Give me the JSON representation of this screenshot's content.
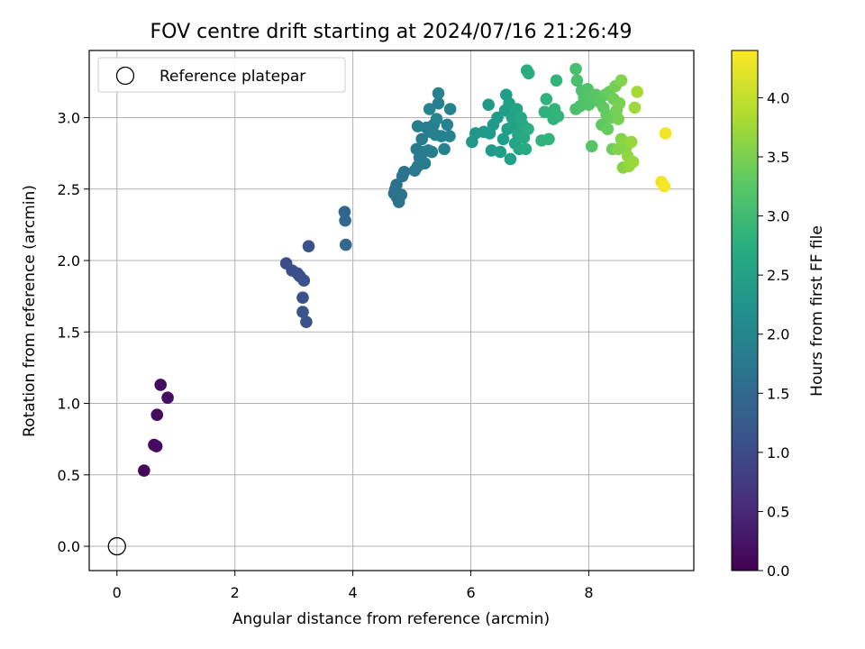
{
  "chart_data": {
    "type": "scatter",
    "title": "FOV centre drift starting at 2024/07/16 21:26:49",
    "xlabel": "Angular distance from reference (arcmin)",
    "ylabel": "Rotation from reference (arcmin)",
    "xlim": [
      -0.47,
      9.78
    ],
    "ylim": [
      -0.17,
      3.47
    ],
    "xticks": [
      "0",
      "2",
      "4",
      "6",
      "8"
    ],
    "xtick_values": [
      0,
      2,
      4,
      6,
      8
    ],
    "yticks": [
      "0.0",
      "0.5",
      "1.0",
      "1.5",
      "2.0",
      "2.5",
      "3.0"
    ],
    "ytick_values": [
      0,
      0.5,
      1.0,
      1.5,
      2.0,
      2.5,
      3.0
    ],
    "grid": true,
    "colormap": "viridis",
    "colorbar": {
      "label": "Hours from first FF file",
      "range": [
        0,
        4.4
      ],
      "ticks": [
        "0.0",
        "0.5",
        "1.0",
        "1.5",
        "2.0",
        "2.5",
        "3.0",
        "3.5",
        "4.0"
      ],
      "tick_values": [
        0,
        0.5,
        1.0,
        1.5,
        2.0,
        2.5,
        3.0,
        3.5,
        4.0
      ]
    },
    "legend": {
      "placement": "top-left",
      "entries": [
        "Reference platepar"
      ]
    },
    "reference_point": {
      "x": 0,
      "y": 0
    },
    "points": [
      {
        "x": 0.46,
        "y": 0.53,
        "t": 0.1
      },
      {
        "x": 0.63,
        "y": 0.71,
        "t": 0.12
      },
      {
        "x": 0.67,
        "y": 0.7,
        "t": 0.13
      },
      {
        "x": 0.68,
        "y": 0.92,
        "t": 0.14
      },
      {
        "x": 0.74,
        "y": 1.13,
        "t": 0.15
      },
      {
        "x": 0.86,
        "y": 1.04,
        "t": 0.16
      },
      {
        "x": 2.87,
        "y": 1.98,
        "t": 1.05
      },
      {
        "x": 2.97,
        "y": 1.93,
        "t": 1.07
      },
      {
        "x": 3.06,
        "y": 1.91,
        "t": 1.08
      },
      {
        "x": 3.1,
        "y": 1.89,
        "t": 1.09
      },
      {
        "x": 3.17,
        "y": 1.86,
        "t": 1.1
      },
      {
        "x": 3.15,
        "y": 1.74,
        "t": 1.12
      },
      {
        "x": 3.15,
        "y": 1.64,
        "t": 1.13
      },
      {
        "x": 3.21,
        "y": 1.57,
        "t": 1.14
      },
      {
        "x": 3.25,
        "y": 2.1,
        "t": 1.15
      },
      {
        "x": 3.86,
        "y": 2.34,
        "t": 1.45
      },
      {
        "x": 3.87,
        "y": 2.28,
        "t": 1.46
      },
      {
        "x": 3.88,
        "y": 2.11,
        "t": 1.47
      },
      {
        "x": 4.7,
        "y": 2.47,
        "t": 1.62
      },
      {
        "x": 4.72,
        "y": 2.5,
        "t": 1.63
      },
      {
        "x": 4.74,
        "y": 2.53,
        "t": 1.64
      },
      {
        "x": 4.78,
        "y": 2.41,
        "t": 1.65
      },
      {
        "x": 4.82,
        "y": 2.46,
        "t": 1.66
      },
      {
        "x": 4.84,
        "y": 2.59,
        "t": 1.67
      },
      {
        "x": 4.87,
        "y": 2.62,
        "t": 1.68
      },
      {
        "x": 4.8,
        "y": 2.45,
        "t": 1.69
      },
      {
        "x": 4.75,
        "y": 2.44,
        "t": 1.7
      },
      {
        "x": 5.05,
        "y": 2.63,
        "t": 1.78
      },
      {
        "x": 5.1,
        "y": 2.66,
        "t": 1.79
      },
      {
        "x": 5.08,
        "y": 2.78,
        "t": 1.8
      },
      {
        "x": 5.13,
        "y": 2.72,
        "t": 1.81
      },
      {
        "x": 5.17,
        "y": 2.85,
        "t": 1.82
      },
      {
        "x": 5.2,
        "y": 2.76,
        "t": 1.83
      },
      {
        "x": 5.22,
        "y": 2.68,
        "t": 1.84
      },
      {
        "x": 5.25,
        "y": 2.93,
        "t": 1.85
      },
      {
        "x": 5.28,
        "y": 2.77,
        "t": 1.86
      },
      {
        "x": 5.31,
        "y": 2.9,
        "t": 1.87
      },
      {
        "x": 5.34,
        "y": 2.76,
        "t": 1.88
      },
      {
        "x": 5.37,
        "y": 2.95,
        "t": 1.89
      },
      {
        "x": 5.1,
        "y": 2.94,
        "t": 1.9
      },
      {
        "x": 5.4,
        "y": 2.88,
        "t": 1.91
      },
      {
        "x": 5.45,
        "y": 3.1,
        "t": 1.92
      },
      {
        "x": 5.45,
        "y": 3.17,
        "t": 1.93
      },
      {
        "x": 5.5,
        "y": 2.87,
        "t": 1.94
      },
      {
        "x": 5.55,
        "y": 2.78,
        "t": 1.95
      },
      {
        "x": 5.6,
        "y": 2.95,
        "t": 1.96
      },
      {
        "x": 5.64,
        "y": 2.87,
        "t": 1.97
      },
      {
        "x": 5.65,
        "y": 3.06,
        "t": 1.98
      },
      {
        "x": 5.3,
        "y": 3.06,
        "t": 1.99
      },
      {
        "x": 5.42,
        "y": 2.99,
        "t": 2.0
      },
      {
        "x": 6.02,
        "y": 2.83,
        "t": 2.3
      },
      {
        "x": 6.08,
        "y": 2.89,
        "t": 2.32
      },
      {
        "x": 6.22,
        "y": 2.9,
        "t": 2.34
      },
      {
        "x": 6.3,
        "y": 3.09,
        "t": 2.36
      },
      {
        "x": 6.32,
        "y": 2.89,
        "t": 2.37
      },
      {
        "x": 6.35,
        "y": 2.77,
        "t": 2.38
      },
      {
        "x": 6.38,
        "y": 2.95,
        "t": 2.39
      },
      {
        "x": 6.45,
        "y": 3.0,
        "t": 2.4
      },
      {
        "x": 6.5,
        "y": 2.76,
        "t": 2.42
      },
      {
        "x": 6.55,
        "y": 2.85,
        "t": 2.44
      },
      {
        "x": 6.58,
        "y": 3.05,
        "t": 2.46
      },
      {
        "x": 6.6,
        "y": 3.16,
        "t": 2.47
      },
      {
        "x": 6.62,
        "y": 2.92,
        "t": 2.48
      },
      {
        "x": 6.65,
        "y": 3.1,
        "t": 2.49
      },
      {
        "x": 6.67,
        "y": 2.71,
        "t": 2.5
      },
      {
        "x": 6.7,
        "y": 3.0,
        "t": 2.52
      },
      {
        "x": 6.72,
        "y": 2.95,
        "t": 2.53
      },
      {
        "x": 6.75,
        "y": 2.82,
        "t": 2.55
      },
      {
        "x": 6.78,
        "y": 3.06,
        "t": 2.57
      },
      {
        "x": 6.8,
        "y": 2.88,
        "t": 2.58
      },
      {
        "x": 6.82,
        "y": 2.78,
        "t": 2.6
      },
      {
        "x": 6.85,
        "y": 3.0,
        "t": 2.62
      },
      {
        "x": 6.88,
        "y": 2.95,
        "t": 2.64
      },
      {
        "x": 6.9,
        "y": 2.86,
        "t": 2.66
      },
      {
        "x": 6.93,
        "y": 2.78,
        "t": 2.68
      },
      {
        "x": 6.95,
        "y": 3.33,
        "t": 2.7
      },
      {
        "x": 6.98,
        "y": 3.31,
        "t": 2.72
      },
      {
        "x": 6.97,
        "y": 2.92,
        "t": 2.73
      },
      {
        "x": 7.2,
        "y": 2.84,
        "t": 2.8
      },
      {
        "x": 7.25,
        "y": 3.04,
        "t": 2.82
      },
      {
        "x": 7.28,
        "y": 3.13,
        "t": 2.83
      },
      {
        "x": 7.32,
        "y": 2.85,
        "t": 2.84
      },
      {
        "x": 7.4,
        "y": 2.99,
        "t": 2.86
      },
      {
        "x": 7.42,
        "y": 3.06,
        "t": 2.87
      },
      {
        "x": 7.45,
        "y": 3.26,
        "t": 2.88
      },
      {
        "x": 7.48,
        "y": 3.01,
        "t": 2.89
      },
      {
        "x": 7.78,
        "y": 3.34,
        "t": 3.1
      },
      {
        "x": 7.78,
        "y": 3.06,
        "t": 3.11
      },
      {
        "x": 7.8,
        "y": 3.26,
        "t": 3.12
      },
      {
        "x": 7.85,
        "y": 3.08,
        "t": 3.13
      },
      {
        "x": 7.88,
        "y": 3.19,
        "t": 3.14
      },
      {
        "x": 7.92,
        "y": 3.14,
        "t": 3.15
      },
      {
        "x": 7.95,
        "y": 3.11,
        "t": 3.16
      },
      {
        "x": 7.98,
        "y": 3.2,
        "t": 3.17
      },
      {
        "x": 8.0,
        "y": 3.09,
        "t": 3.18
      },
      {
        "x": 8.02,
        "y": 3.17,
        "t": 3.19
      },
      {
        "x": 8.05,
        "y": 2.8,
        "t": 3.2
      },
      {
        "x": 8.08,
        "y": 3.15,
        "t": 3.22
      },
      {
        "x": 8.12,
        "y": 3.16,
        "t": 3.24
      },
      {
        "x": 8.18,
        "y": 3.11,
        "t": 3.26
      },
      {
        "x": 8.22,
        "y": 2.95,
        "t": 3.28
      },
      {
        "x": 8.25,
        "y": 3.07,
        "t": 3.3
      },
      {
        "x": 8.28,
        "y": 3.16,
        "t": 3.32
      },
      {
        "x": 8.3,
        "y": 3.02,
        "t": 3.33
      },
      {
        "x": 8.32,
        "y": 2.92,
        "t": 3.35
      },
      {
        "x": 8.35,
        "y": 3.18,
        "t": 3.37
      },
      {
        "x": 8.38,
        "y": 3.0,
        "t": 3.38
      },
      {
        "x": 8.4,
        "y": 2.78,
        "t": 3.4
      },
      {
        "x": 8.42,
        "y": 3.13,
        "t": 3.42
      },
      {
        "x": 8.45,
        "y": 3.22,
        "t": 3.44
      },
      {
        "x": 8.47,
        "y": 3.05,
        "t": 3.46
      },
      {
        "x": 8.5,
        "y": 2.99,
        "t": 3.48
      },
      {
        "x": 8.52,
        "y": 3.1,
        "t": 3.5
      },
      {
        "x": 8.55,
        "y": 3.26,
        "t": 3.55
      },
      {
        "x": 8.55,
        "y": 2.85,
        "t": 3.58
      },
      {
        "x": 8.58,
        "y": 2.65,
        "t": 3.6
      },
      {
        "x": 8.6,
        "y": 2.81,
        "t": 3.62
      },
      {
        "x": 8.63,
        "y": 2.79,
        "t": 3.64
      },
      {
        "x": 8.66,
        "y": 2.73,
        "t": 3.66
      },
      {
        "x": 8.68,
        "y": 2.66,
        "t": 3.68
      },
      {
        "x": 8.72,
        "y": 2.83,
        "t": 3.7
      },
      {
        "x": 8.75,
        "y": 2.69,
        "t": 3.72
      },
      {
        "x": 8.78,
        "y": 3.07,
        "t": 3.76
      },
      {
        "x": 8.82,
        "y": 3.18,
        "t": 3.8
      },
      {
        "x": 8.5,
        "y": 2.78,
        "t": 3.56
      },
      {
        "x": 9.23,
        "y": 2.55,
        "t": 4.3
      },
      {
        "x": 9.28,
        "y": 2.52,
        "t": 4.35
      },
      {
        "x": 9.3,
        "y": 2.89,
        "t": 4.32
      }
    ]
  }
}
